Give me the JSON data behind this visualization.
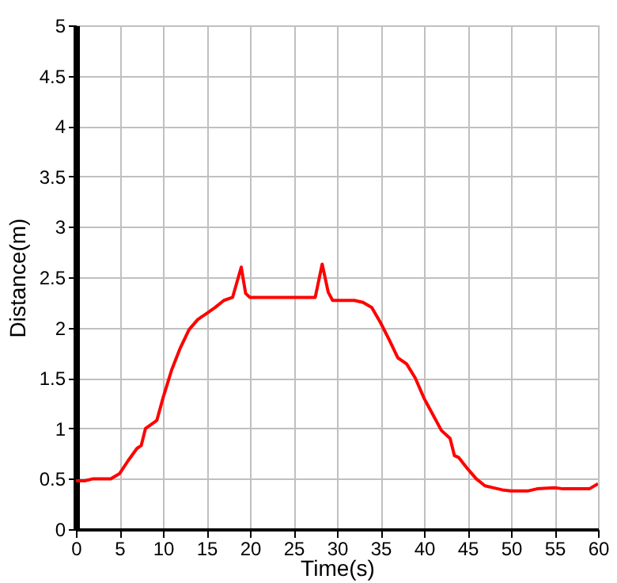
{
  "chart_data": {
    "type": "line",
    "xlabel": "Time(s)",
    "ylabel": "Distance(m)",
    "xlim": [
      0,
      60
    ],
    "ylim": [
      0,
      5
    ],
    "xticks": [
      0,
      5,
      10,
      15,
      20,
      25,
      30,
      35,
      40,
      45,
      50,
      55,
      60
    ],
    "yticks": [
      0,
      0.5,
      1,
      1.5,
      2,
      2.5,
      3,
      3.5,
      4,
      4.5,
      5
    ],
    "grid": true,
    "marker": "none",
    "line_style": "solid",
    "x": [
      0,
      1,
      2,
      4,
      5,
      6,
      7,
      7.5,
      8,
      9,
      9.3,
      10,
      11,
      12,
      13,
      14,
      15,
      16,
      17,
      18,
      19,
      19.5,
      20,
      27.5,
      28.3,
      29,
      29.5,
      32,
      33,
      34,
      35,
      36,
      37,
      38,
      39,
      40,
      41,
      42,
      43,
      43.5,
      44,
      45,
      46,
      47,
      48,
      49,
      50,
      52,
      53,
      55,
      56,
      59,
      60
    ],
    "series": [
      {
        "color": "#ff0000",
        "values": [
          0.48,
          0.48,
          0.5,
          0.5,
          0.55,
          0.68,
          0.8,
          0.83,
          1.0,
          1.06,
          1.08,
          1.3,
          1.58,
          1.8,
          1.98,
          2.08,
          2.14,
          2.2,
          2.27,
          2.3,
          2.6,
          2.34,
          2.3,
          2.3,
          2.63,
          2.35,
          2.27,
          2.27,
          2.25,
          2.2,
          2.05,
          1.88,
          1.7,
          1.64,
          1.5,
          1.3,
          1.14,
          0.98,
          0.9,
          0.73,
          0.71,
          0.6,
          0.5,
          0.43,
          0.41,
          0.39,
          0.38,
          0.38,
          0.4,
          0.41,
          0.4,
          0.4,
          0.45
        ]
      }
    ]
  }
}
